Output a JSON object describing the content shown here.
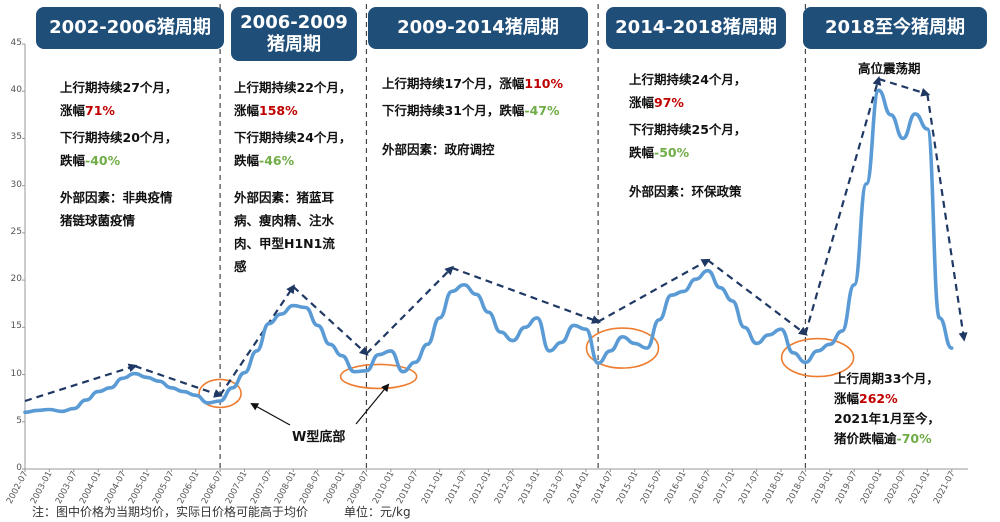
{
  "periods": [
    {
      "title": "2002-2006猪周期",
      "up": "上行期持续27个月，",
      "up_rise_label": "涨幅",
      "up_rise": "71%",
      "down": "下行期持续20个月，",
      "down_fall_label": "跌幅",
      "down_fall": "-40%",
      "factor_1": "外部因素：非典疫情",
      "factor_2": "猪链球菌疫情"
    },
    {
      "title_1": "2006-2009",
      "title_2": "猪周期",
      "up": "上行期持续22个月，",
      "up_rise_label": "涨幅",
      "up_rise": "158%",
      "down": "下行期持续24个月，",
      "down_fall_label": "跌幅",
      "down_fall": "-46%",
      "factor_1": "外部因素：猪蓝耳",
      "factor_2": "病、瘦肉精、注水",
      "factor_3": "肉、甲型H1N1流",
      "factor_4": "感"
    },
    {
      "title": "2009-2014猪周期",
      "up": "上行期持续17个月，涨幅",
      "up_rise": "110%",
      "down": "下行期持续31个月，跌幅",
      "down_fall": "-47%",
      "factor_1": "外部因素：政府调控"
    },
    {
      "title": "2014-2018猪周期",
      "up": "上行期持续24个月，",
      "up_rise_label": "涨幅",
      "up_rise": "97%",
      "down": "下行期持续25个月，",
      "down_fall_label": "跌幅",
      "down_fall": "-50%",
      "factor_1": "外部因素：环保政策"
    },
    {
      "title": "2018至今猪周期",
      "plateau": "高位震荡期",
      "up": "上行周期33个月，",
      "up_rise_label": "涨幅",
      "up_rise": "262%",
      "note_1": "2021年1月至今，",
      "note_2": "猪价跌幅逾",
      "note_2_val": "-70%"
    }
  ],
  "annotations": {
    "w_bottom": "W型底部"
  },
  "footnote": {
    "note": "注：图中价格为当期均价，实际日价格可能高于均价",
    "unit": "单位：元/kg"
  },
  "colors": {
    "line": "#5b9bd5",
    "arrow": "#1f3864",
    "title_bg": "#1f4e79",
    "ellipse": "#ed7d31",
    "rise": "#c00000",
    "fall": "#70ad47"
  },
  "chart_data": {
    "type": "line",
    "series": [
      {
        "x": [
          "2002-07",
          "2002-10",
          "2003-01",
          "2003-04",
          "2003-07",
          "2003-10",
          "2004-01",
          "2004-04",
          "2004-07",
          "2004-10",
          "2005-01",
          "2005-04",
          "2005-07",
          "2005-10",
          "2006-01",
          "2006-04",
          "2006-07",
          "2006-10",
          "2007-01",
          "2007-04",
          "2007-07",
          "2007-10",
          "2008-01",
          "2008-04",
          "2008-07",
          "2008-10",
          "2009-01",
          "2009-04",
          "2009-07",
          "2009-10",
          "2010-01",
          "2010-04",
          "2010-07",
          "2010-10",
          "2011-01",
          "2011-04",
          "2011-07",
          "2011-10",
          "2012-01",
          "2012-04",
          "2012-07",
          "2012-10",
          "2013-01",
          "2013-04",
          "2013-07",
          "2013-10",
          "2014-01",
          "2014-04",
          "2014-07",
          "2014-10",
          "2015-01",
          "2015-04",
          "2015-07",
          "2015-10",
          "2016-01",
          "2016-04",
          "2016-07",
          "2016-10",
          "2017-01",
          "2017-04",
          "2017-07",
          "2017-10",
          "2018-01",
          "2018-04",
          "2018-07",
          "2018-10",
          "2019-01",
          "2019-04",
          "2019-07",
          "2019-10",
          "2020-01",
          "2020-04",
          "2020-07",
          "2020-10",
          "2021-01",
          "2021-04",
          "2021-07"
        ],
        "values": [
          6.0,
          6.2,
          6.3,
          6.1,
          6.4,
          7.3,
          8.2,
          8.6,
          9.6,
          10.1,
          9.7,
          9.3,
          8.6,
          8.2,
          7.8,
          7.0,
          7.2,
          8.6,
          10.2,
          12.5,
          15.4,
          16.4,
          17.3,
          17.1,
          15.2,
          13.2,
          12.0,
          10.3,
          10.4,
          12.1,
          12.5,
          10.3,
          11.3,
          13.2,
          16.0,
          18.8,
          19.5,
          18.5,
          16.6,
          14.5,
          13.6,
          15.0,
          16.0,
          12.5,
          13.4,
          15.2,
          14.8,
          11.2,
          12.5,
          14.0,
          13.3,
          12.8,
          15.8,
          18.4,
          18.8,
          20.1,
          21.0,
          19.2,
          17.8,
          15.0,
          13.3,
          14.2,
          14.8,
          12.3,
          11.3,
          12.5,
          13.2,
          14.6,
          19.5,
          30.2,
          40.1,
          37.5,
          35.0,
          37.6,
          36.0,
          16.0,
          12.8
        ]
      }
    ],
    "ylim": [
      0,
      45
    ],
    "yticks": [
      0,
      5,
      10,
      15,
      20,
      25,
      30,
      35,
      40,
      45
    ],
    "xticks": [
      "2002-07",
      "2003-01",
      "2003-07",
      "2004-01",
      "2004-07",
      "2005-01",
      "2005-07",
      "2006-01",
      "2006-07",
      "2007-01",
      "2007-07",
      "2008-01",
      "2008-07",
      "2009-01",
      "2009-07",
      "2010-01",
      "2010-07",
      "2011-01",
      "2011-07",
      "2012-01",
      "2012-07",
      "2013-01",
      "2013-07",
      "2014-01",
      "2014-07",
      "2015-01",
      "2015-07",
      "2016-01",
      "2016-07",
      "2017-01",
      "2017-07",
      "2018-01",
      "2018-07",
      "2019-01",
      "2019-07",
      "2020-01",
      "2020-07",
      "2021-01",
      "2021-07"
    ],
    "xlim": [
      "2002-07",
      "2021-11"
    ],
    "period_dividers": [
      "2006-07",
      "2009-07",
      "2014-04",
      "2018-07"
    ],
    "grid": false
  }
}
